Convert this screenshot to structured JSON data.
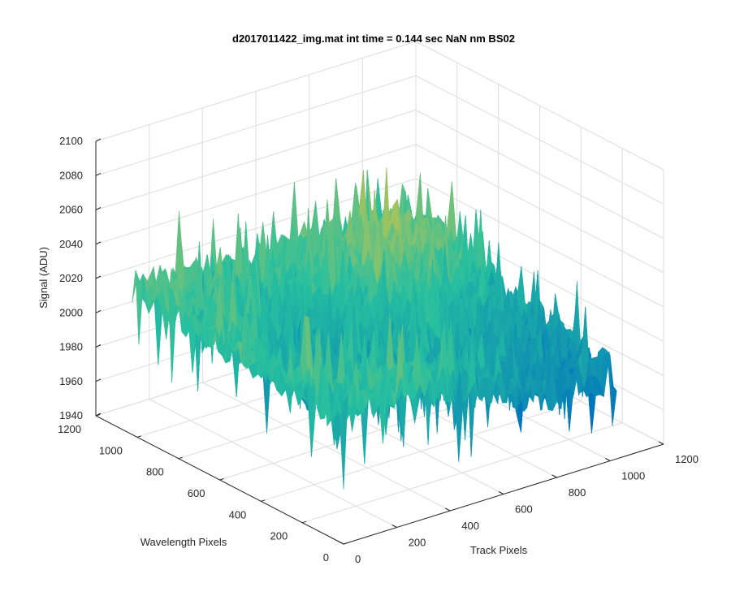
{
  "chart_data": {
    "type": "surface",
    "title": "d2017011422_img.mat int time = 0.144 sec  NaN nm BS02",
    "xlabel": "Track Pixels",
    "ylabel": "Wavelength Pixels",
    "zlabel": "Signal (ADU)",
    "xlim": [
      0,
      1200
    ],
    "ylim": [
      0,
      1200
    ],
    "zlim": [
      1940,
      2100
    ],
    "xticks": [
      "0",
      "200",
      "400",
      "600",
      "800",
      "1000",
      "1200"
    ],
    "yticks": [
      "0",
      "200",
      "400",
      "600",
      "800",
      "1000",
      "1200"
    ],
    "zticks": [
      "1940",
      "1960",
      "1980",
      "2000",
      "2020",
      "2040",
      "2060",
      "2080",
      "2100"
    ],
    "grid": true,
    "colormap": "parula",
    "colors": {
      "low": "#0072bd",
      "mid": "#26bfa0",
      "high": "#edc53a"
    },
    "surface_extent": {
      "x": [
        0,
        1024
      ],
      "y": [
        0,
        1024
      ]
    },
    "signal_levels": [
      {
        "region": "rows near 1000, low track",
        "approx_mean": 2015
      },
      {
        "region": "rows near 800, high track",
        "approx_mean": 2045
      },
      {
        "region": "rows near 0, mid track",
        "approx_mean": 1990
      },
      {
        "region": "rows near 400, high track",
        "approx_mean": 2000
      }
    ]
  }
}
